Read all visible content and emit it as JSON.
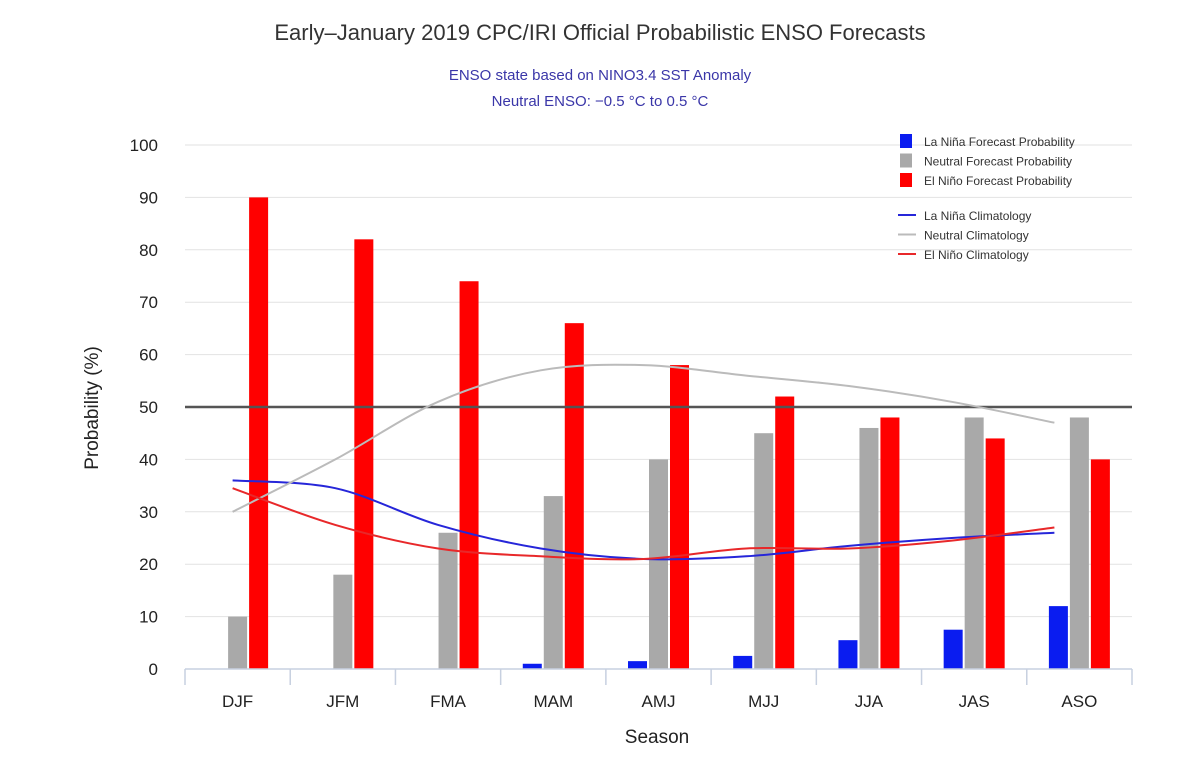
{
  "chart_data": {
    "type": "bar",
    "title": "Early–January 2019 CPC/IRI Official Probabilistic ENSO Forecasts",
    "subtitle_lines": [
      "ENSO state based on NINO3.4 SST Anomaly",
      "Neutral ENSO: −0.5 °C to 0.5 °C"
    ],
    "xlabel": "Season",
    "ylabel": "Probability (%)",
    "ylim": [
      0,
      100
    ],
    "yticks": [
      "0",
      "10",
      "20",
      "30",
      "40",
      "50",
      "60",
      "70",
      "80",
      "90",
      "100"
    ],
    "categories": [
      "DJF",
      "JFM",
      "FMA",
      "MAM",
      "AMJ",
      "MJJ",
      "JJA",
      "JAS",
      "ASO"
    ],
    "reference_line": 50,
    "grid": true,
    "legend_position": "top-right",
    "series": [
      {
        "name": "La Niña Forecast Probability",
        "color": "#0a1cf0",
        "values": [
          0,
          0,
          0,
          1,
          1.5,
          2.5,
          5.5,
          7.5,
          12
        ]
      },
      {
        "name": "Neutral Forecast Probability",
        "color": "#a9a9a9",
        "values": [
          10,
          18,
          26,
          33,
          40,
          45,
          46,
          48,
          48
        ]
      },
      {
        "name": "El Niño Forecast Probability",
        "color": "#ff0000",
        "values": [
          90,
          82,
          74,
          66,
          58,
          52,
          48,
          44,
          40
        ]
      }
    ],
    "lines": [
      {
        "name": "La Niña Climatology",
        "color": "#2626d9",
        "values": [
          36,
          34.5,
          27.5,
          23,
          21,
          21.5,
          23.5,
          25,
          26
        ]
      },
      {
        "name": "Neutral Climatology",
        "color": "#bbbbbb",
        "values": [
          30,
          40,
          51,
          57,
          58,
          56,
          54,
          51,
          47
        ]
      },
      {
        "name": "El Niño Climatology",
        "color": "#e8282a",
        "values": [
          34.5,
          27.5,
          23,
          21.5,
          21,
          23,
          23,
          24.5,
          27
        ]
      }
    ]
  }
}
